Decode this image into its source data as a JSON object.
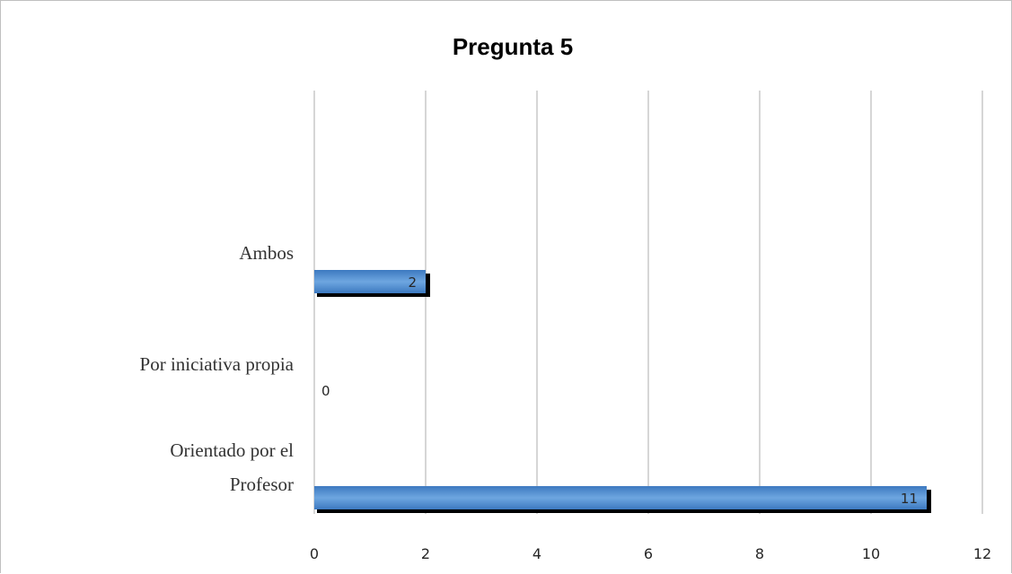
{
  "chart_data": {
    "type": "bar",
    "orientation": "horizontal",
    "title": "Pregunta 5",
    "categories": [
      [
        "Ambos"
      ],
      [
        "Por iniciativa propia"
      ],
      [
        "Orientado por el",
        "Profesor"
      ]
    ],
    "values": [
      2,
      0,
      11
    ],
    "data_labels": [
      "2",
      "0",
      "11"
    ],
    "x_ticks": [
      "0",
      "2",
      "4",
      "6",
      "8",
      "10",
      "12"
    ],
    "xlim": [
      0,
      12
    ],
    "grid": "vertical",
    "legend": "none",
    "colors": {
      "bar_light": "#6ea6e0",
      "bar_dark": "#3c79c0",
      "bar_shadow": "#000000",
      "grid": "#c8c8c8"
    }
  }
}
